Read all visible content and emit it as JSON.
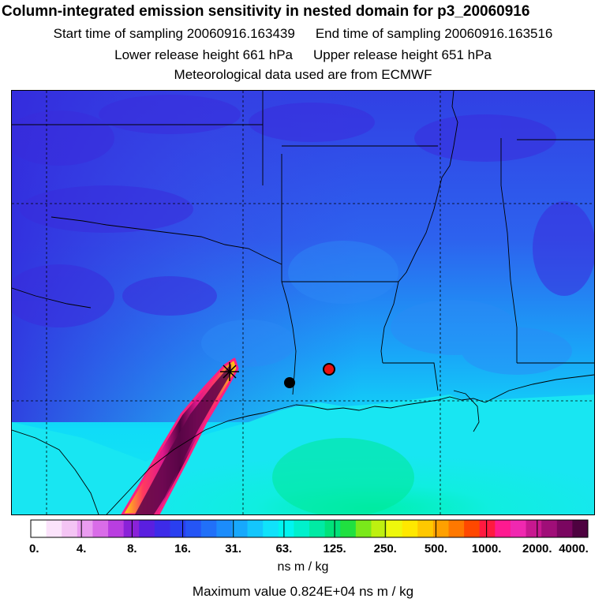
{
  "title": "Column-integrated emission sensitivity in nested domain for p3_20060916",
  "sampling": {
    "start": "Start time of sampling 20060916.163439",
    "end": "End time of sampling 20060916.163516"
  },
  "release": {
    "lower": "Lower release height  661 hPa",
    "upper": "Upper release height  651 hPa"
  },
  "met_data": "Meteorological data used are from ECMWF",
  "colorbar": {
    "tick_labels": [
      "0.",
      "4.",
      "8.",
      "16.",
      "31.",
      "63.",
      "125.",
      "250.",
      "500.",
      "1000.",
      "2000.",
      "4000."
    ],
    "colors": [
      "#ffffff",
      "#fbe3fb",
      "#f4c4f4",
      "#ea9cf0",
      "#d96ce8",
      "#b93ee0",
      "#8a22d8",
      "#5a1fe0",
      "#3d2be8",
      "#2a3ff0",
      "#2555f5",
      "#2170f8",
      "#1c8cfb",
      "#17a8fc",
      "#14c6fc",
      "#10e2fa",
      "#00f5f0",
      "#00f0cc",
      "#00eaa4",
      "#00e27a",
      "#20e040",
      "#7ae81a",
      "#bef010",
      "#eef80c",
      "#ffe800",
      "#ffc800",
      "#ffa000",
      "#ff7800",
      "#ff4800",
      "#ff1a40",
      "#ff1a90",
      "#f028b0",
      "#c81890",
      "#a00e78",
      "#7a0660",
      "#4e0240"
    ]
  },
  "unit": "ns m / kg",
  "max_value": "Maximum value  0.824E+04 ns m / kg",
  "markers": [
    {
      "name": "black-dot-marker",
      "color": "#000000"
    },
    {
      "name": "red-dot-marker",
      "color": "#e81010"
    },
    {
      "name": "release-point-marker",
      "color": "#000000"
    }
  ],
  "colors": {
    "ocean": "#18e8e8",
    "land_low": "#2a74f0",
    "land_high": "#3a3ee0",
    "plume": "#ff1a90"
  }
}
